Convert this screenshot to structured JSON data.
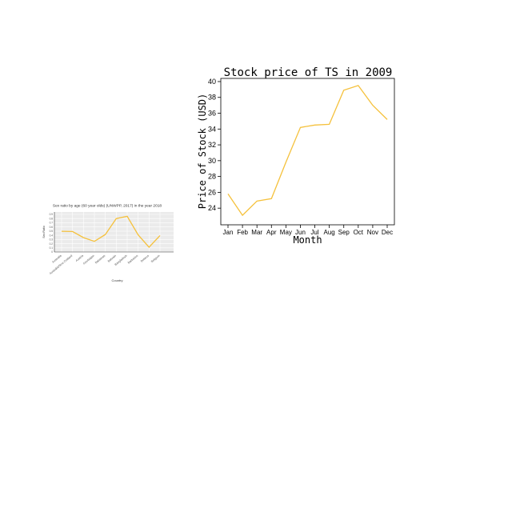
{
  "chart_data": [
    {
      "type": "line",
      "title": "Sex ratio by age (60 year olds) (UNWPP, 2017) in the year 2018",
      "xlabel": "Country",
      "ylabel": "Sex Ratio",
      "categories": [
        "Australia",
        "Australia/New Zealand",
        "Austria",
        "Azerbaijan",
        "Bahamas",
        "Bahrain",
        "Bangladesh",
        "Barbados",
        "Belarus",
        "Belgium"
      ],
      "values": [
        0.495,
        0.49,
        0.345,
        0.255,
        0.42,
        0.8,
        0.855,
        0.41,
        0.115,
        0.395
      ],
      "yticks": [
        "0.9",
        "0.8",
        "0.7",
        "0.6",
        "0.5",
        "0.4",
        "0.3",
        "0.2",
        "0.1",
        "0"
      ],
      "ylim": [
        0,
        0.9
      ],
      "grid": true,
      "line_color": "#f5c13c",
      "panel_color": "#ebebeb"
    },
    {
      "type": "line",
      "title": "Stock price of TS in 2009",
      "xlabel": "Month",
      "ylabel": "Price of Stock (USD)",
      "categories": [
        "Jan",
        "Feb",
        "Mar",
        "Apr",
        "May",
        "Jun",
        "Jul",
        "Aug",
        "Sep",
        "Oct",
        "Nov",
        "Dec"
      ],
      "values": [
        25.8,
        23.1,
        24.9,
        25.2,
        29.8,
        34.2,
        34.5,
        34.6,
        38.9,
        39.5,
        37.0,
        35.2
      ],
      "yticks": [
        "24",
        "26",
        "28",
        "30",
        "32",
        "34",
        "36",
        "38",
        "40"
      ],
      "ylim": [
        22.3,
        40.4
      ],
      "grid": false,
      "line_color": "#f5c13c"
    }
  ]
}
